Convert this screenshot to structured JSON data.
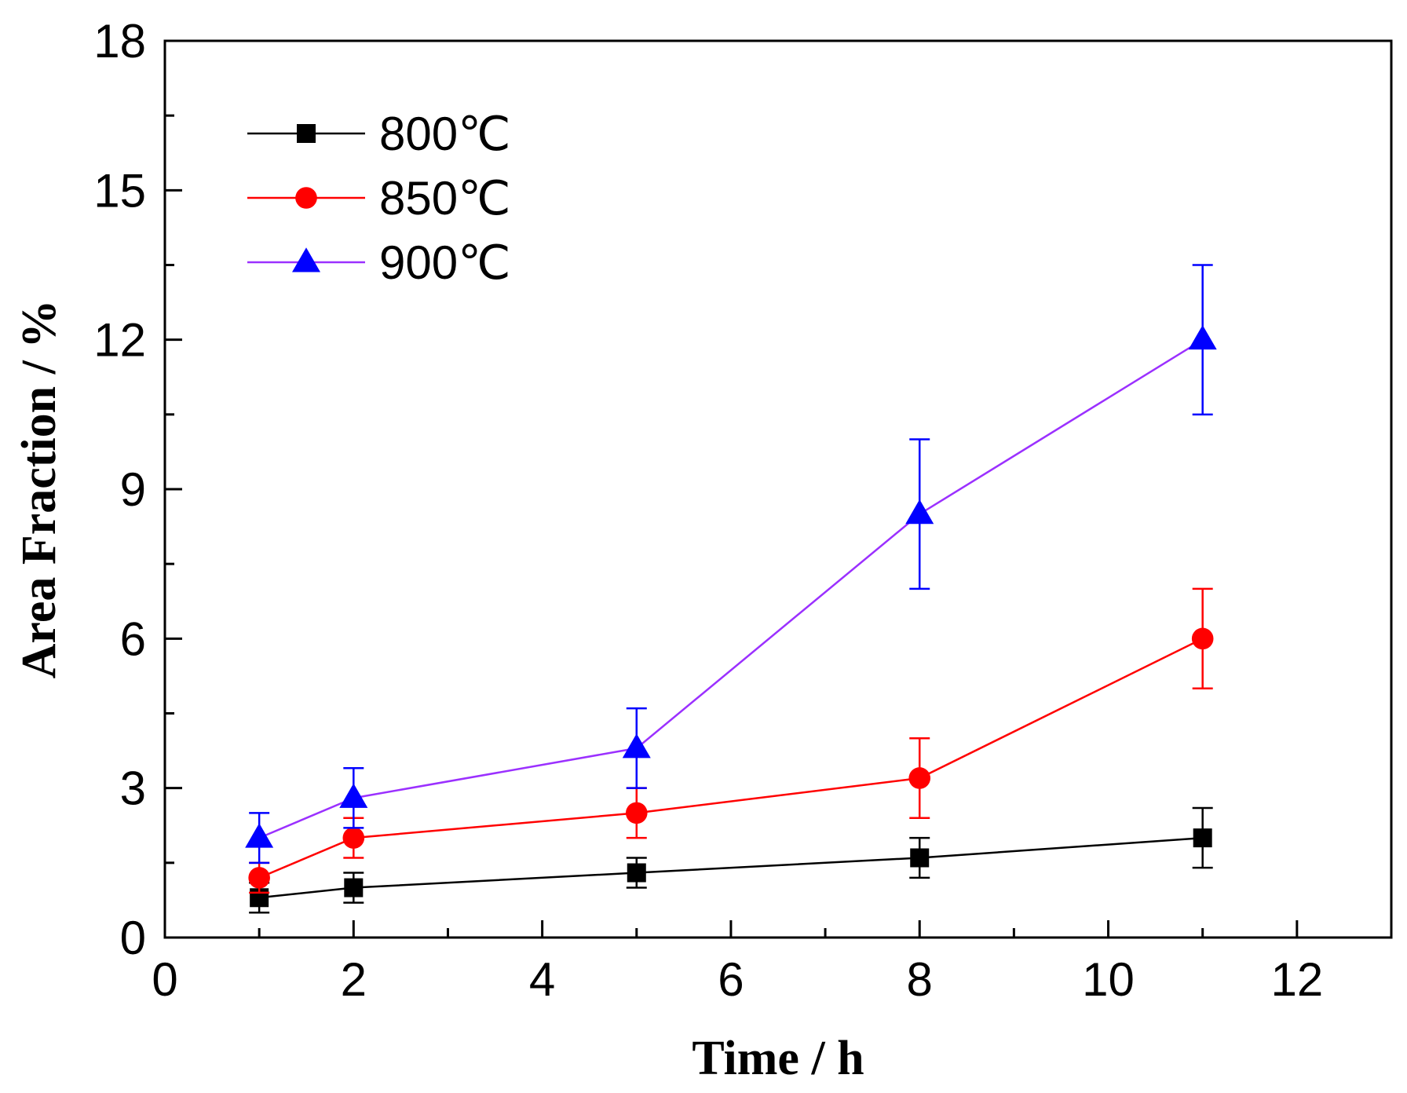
{
  "chart_data": {
    "type": "line",
    "title": "",
    "xlabel": "Time / h",
    "ylabel": "Area Fraction / %",
    "xlim": [
      0,
      13
    ],
    "ylim": [
      0,
      18
    ],
    "x_ticks": [
      0,
      2,
      4,
      6,
      8,
      10,
      12
    ],
    "y_ticks": [
      0,
      3,
      6,
      9,
      12,
      15,
      18
    ],
    "grid": false,
    "legend_position": "top-left",
    "series": [
      {
        "name": "800℃",
        "color": "#000000",
        "marker": "square",
        "x": [
          1,
          2,
          5,
          8,
          11
        ],
        "y": [
          0.8,
          1.0,
          1.3,
          1.6,
          2.0
        ],
        "error": [
          0.3,
          0.3,
          0.3,
          0.4,
          0.6
        ]
      },
      {
        "name": "850℃",
        "color": "#ff0000",
        "marker": "circle",
        "x": [
          1,
          2,
          5,
          8,
          11
        ],
        "y": [
          1.2,
          2.0,
          2.5,
          3.2,
          6.0
        ],
        "error": [
          0.3,
          0.4,
          0.5,
          0.8,
          1.0
        ]
      },
      {
        "name": "900℃",
        "color": "#0000ff",
        "line_color": "#9b30ff",
        "marker": "triangle",
        "x": [
          1,
          2,
          5,
          8,
          11
        ],
        "y": [
          2.0,
          2.8,
          3.8,
          8.5,
          12.0
        ],
        "error": [
          0.5,
          0.6,
          0.8,
          1.5,
          1.5
        ]
      }
    ]
  }
}
